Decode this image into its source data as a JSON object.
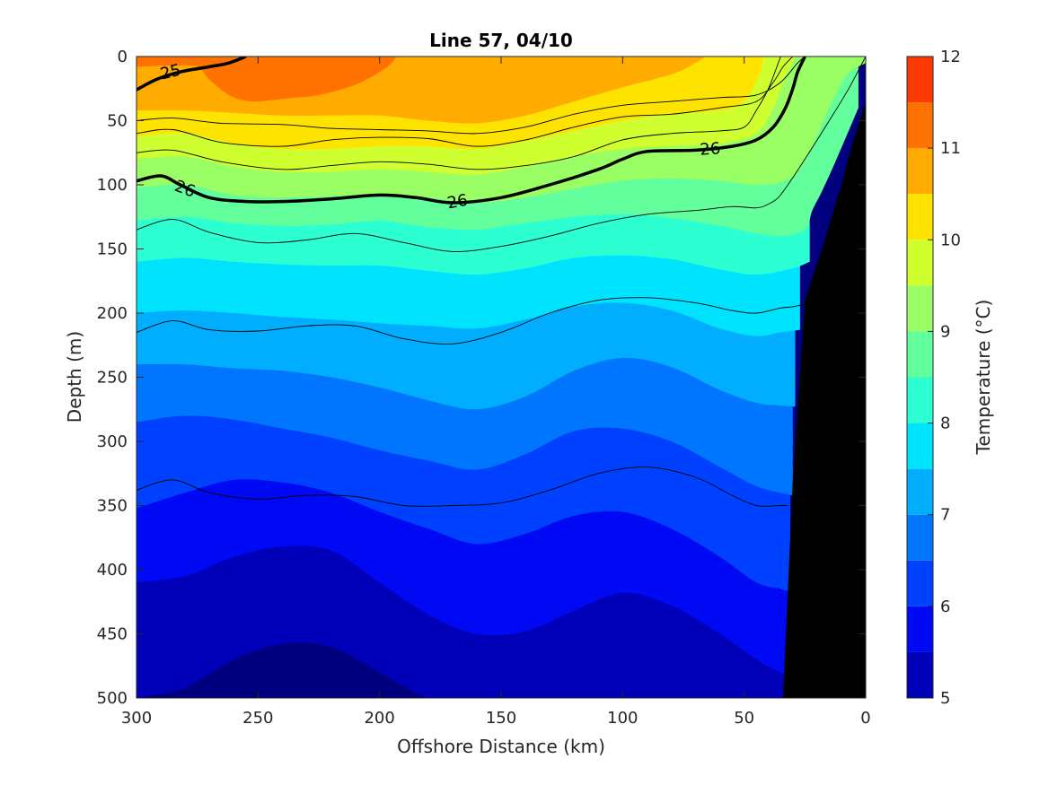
{
  "chart_data": {
    "type": "heatmap",
    "title": "Line 57, 04/10",
    "xlabel": "Offshore Distance (km)",
    "ylabel": "Depth (m)",
    "colorbar_label": "Temperature (°C)",
    "xlim": [
      300,
      0
    ],
    "ylim": [
      0,
      500
    ],
    "x_reversed": true,
    "y_reversed": true,
    "x_ticks": [
      300,
      250,
      200,
      150,
      100,
      50,
      0
    ],
    "y_ticks": [
      0,
      50,
      100,
      150,
      200,
      250,
      300,
      350,
      400,
      450,
      500
    ],
    "colorbar_ticks": [
      5,
      6,
      7,
      8,
      9,
      10,
      11,
      12
    ],
    "colorbar_range": [
      5,
      12
    ],
    "temperature_levels": [
      5,
      5.5,
      6,
      6.5,
      7,
      7.5,
      8,
      8.5,
      9,
      9.5,
      10,
      10.5,
      11,
      11.5,
      12
    ],
    "colormap": [
      "#00007f",
      "#0000b9",
      "#0009f4",
      "#0040ff",
      "#0076ff",
      "#00adff",
      "#00e3ff",
      "#2cffd2",
      "#62ff9c",
      "#99ff65",
      "#cfff2f",
      "#ffe300",
      "#ffab00",
      "#ff7200",
      "#ff3a00",
      "#b90000"
    ],
    "isotherms": [
      {
        "t": 5.5,
        "x": [
          300,
          280,
          260,
          240,
          220,
          200,
          180,
          160,
          140,
          120,
          100,
          80,
          60,
          45,
          35,
          33
        ],
        "depth": [
          500,
          492,
          470,
          458,
          460,
          480,
          500,
          500,
          500,
          500,
          500,
          500,
          500,
          500,
          500,
          500
        ]
      },
      {
        "t": 6.0,
        "x": [
          300,
          280,
          260,
          240,
          220,
          200,
          180,
          160,
          140,
          120,
          100,
          80,
          60,
          45,
          35,
          32
        ],
        "depth": [
          410,
          405,
          390,
          382,
          385,
          410,
          435,
          450,
          448,
          432,
          418,
          428,
          450,
          470,
          480,
          482
        ]
      },
      {
        "t": 6.5,
        "x": [
          300,
          280,
          260,
          240,
          220,
          200,
          180,
          160,
          140,
          120,
          100,
          80,
          60,
          45,
          35,
          31
        ],
        "depth": [
          352,
          340,
          330,
          332,
          340,
          355,
          368,
          380,
          372,
          358,
          355,
          368,
          390,
          410,
          415,
          418
        ]
      },
      {
        "t": 7.0,
        "x": [
          300,
          280,
          260,
          240,
          220,
          200,
          180,
          160,
          140,
          120,
          100,
          80,
          60,
          45,
          35,
          30
        ],
        "depth": [
          285,
          280,
          283,
          290,
          297,
          307,
          315,
          322,
          310,
          292,
          290,
          300,
          320,
          335,
          340,
          342
        ]
      },
      {
        "t": 7.5,
        "x": [
          300,
          280,
          260,
          240,
          220,
          200,
          180,
          160,
          140,
          120,
          100,
          80,
          60,
          45,
          35,
          29
        ],
        "depth": [
          240,
          240,
          243,
          245,
          250,
          258,
          268,
          275,
          265,
          245,
          235,
          242,
          260,
          270,
          272,
          273
        ]
      },
      {
        "t": 8.0,
        "x": [
          300,
          280,
          260,
          240,
          220,
          200,
          180,
          160,
          140,
          120,
          100,
          80,
          60,
          45,
          35,
          27
        ],
        "depth": [
          200,
          198,
          200,
          203,
          205,
          208,
          210,
          212,
          205,
          195,
          192,
          198,
          212,
          218,
          215,
          213
        ]
      },
      {
        "t": 8.5,
        "x": [
          300,
          280,
          260,
          240,
          220,
          200,
          180,
          160,
          140,
          120,
          100,
          80,
          60,
          45,
          30,
          23
        ],
        "depth": [
          160,
          157,
          160,
          162,
          163,
          163,
          167,
          170,
          165,
          157,
          155,
          158,
          166,
          170,
          165,
          160
        ]
      },
      {
        "t": 9.0,
        "x": [
          300,
          280,
          260,
          240,
          220,
          200,
          180,
          160,
          140,
          120,
          100,
          80,
          60,
          45,
          35,
          25,
          22,
          18,
          12,
          3
        ],
        "depth": [
          128,
          125,
          130,
          132,
          131,
          128,
          133,
          135,
          130,
          125,
          123,
          126,
          132,
          138,
          140,
          135,
          120,
          105,
          80,
          40
        ]
      },
      {
        "t": 9.5,
        "x": [
          300,
          280,
          260,
          240,
          220,
          200,
          180,
          160,
          140,
          120,
          100,
          80,
          60,
          45,
          35,
          28,
          22,
          15,
          8,
          0
        ],
        "depth": [
          102,
          100,
          108,
          110,
          109,
          107,
          110,
          114,
          110,
          103,
          97,
          95,
          97,
          100,
          98,
          90,
          70,
          40,
          15,
          5
        ]
      },
      {
        "t": 10.0,
        "x": [
          300,
          280,
          260,
          240,
          220,
          200,
          180,
          160,
          140,
          120,
          100,
          80,
          60,
          45,
          38,
          34,
          31,
          29
        ],
        "depth": [
          80,
          78,
          86,
          90,
          90,
          88,
          90,
          92,
          86,
          78,
          72,
          70,
          68,
          60,
          40,
          20,
          8,
          0
        ]
      },
      {
        "t": 10.5,
        "x": [
          300,
          280,
          260,
          240,
          220,
          200,
          180,
          160,
          140,
          120,
          100,
          80,
          60,
          50,
          44,
          42
        ],
        "depth": [
          62,
          60,
          68,
          72,
          72,
          70,
          70,
          72,
          66,
          58,
          50,
          45,
          42,
          35,
          15,
          0
        ]
      },
      {
        "t": 11.0,
        "x": [
          300,
          280,
          260,
          240,
          220,
          200,
          180,
          160,
          140,
          120,
          100,
          80,
          70,
          66
        ],
        "depth": [
          42,
          42,
          44,
          46,
          46,
          46,
          50,
          52,
          46,
          35,
          24,
          14,
          5,
          0
        ]
      },
      {
        "t": 11.5,
        "x": [
          300,
          285,
          275,
          270,
          262,
          256,
          250,
          240,
          225,
          210,
          200,
          195,
          193
        ],
        "depth": [
          8,
          7,
          8,
          18,
          30,
          34,
          35,
          33,
          30,
          22,
          12,
          5,
          0
        ]
      },
      {
        "t": 12.0,
        "x": [],
        "depth": []
      }
    ],
    "density_contours": [
      {
        "x": [
          300,
          285,
          265,
          240,
          220,
          200,
          180,
          160,
          140,
          120,
          100,
          80,
          60,
          45,
          35,
          28,
          25
        ],
        "depth": [
          50,
          48,
          52,
          53,
          56,
          57,
          58,
          60,
          55,
          45,
          38,
          35,
          32,
          30,
          20,
          5,
          0
        ]
      },
      {
        "x": [
          300,
          285,
          265,
          240,
          220,
          200,
          180,
          160,
          140,
          120,
          100,
          80,
          60,
          45,
          38,
          34,
          30
        ],
        "depth": [
          60,
          57,
          67,
          70,
          65,
          63,
          64,
          70,
          65,
          55,
          47,
          45,
          40,
          35,
          20,
          8,
          0
        ]
      },
      {
        "x": [
          300,
          285,
          265,
          240,
          220,
          200,
          180,
          160,
          140,
          120,
          100,
          80,
          60,
          50,
          45,
          40,
          35
        ],
        "depth": [
          75,
          73,
          82,
          88,
          85,
          82,
          84,
          88,
          85,
          78,
          65,
          60,
          58,
          55,
          42,
          25,
          0
        ]
      },
      {
        "x": [
          300,
          285,
          270,
          250,
          230,
          210,
          190,
          170,
          150,
          130,
          110,
          90,
          70,
          55,
          45,
          40,
          36,
          32,
          25,
          15,
          7,
          0
        ],
        "depth": [
          135,
          127,
          137,
          145,
          143,
          138,
          145,
          152,
          148,
          140,
          130,
          123,
          120,
          117,
          118,
          115,
          110,
          100,
          80,
          50,
          25,
          0
        ]
      },
      {
        "x": [
          300,
          285,
          270,
          250,
          230,
          210,
          190,
          170,
          150,
          130,
          110,
          90,
          70,
          55,
          45,
          35,
          30,
          25
        ],
        "depth": [
          215,
          206,
          213,
          214,
          210,
          210,
          220,
          224,
          215,
          200,
          190,
          188,
          192,
          198,
          200,
          196,
          195,
          193
        ]
      },
      {
        "x": [
          300,
          285,
          270,
          250,
          230,
          210,
          190,
          170,
          150,
          130,
          110,
          90,
          70,
          55,
          45,
          35,
          32
        ],
        "depth": [
          338,
          330,
          340,
          345,
          342,
          343,
          350,
          350,
          348,
          338,
          325,
          320,
          328,
          342,
          350,
          350,
          350
        ]
      }
    ],
    "contour_labels": [
      {
        "text": "25",
        "x": 286,
        "depth": 12,
        "angle": -14
      },
      {
        "text": "26",
        "x": 280,
        "depth": 103,
        "angle": 20
      },
      {
        "text": "26",
        "x": 168,
        "depth": 113,
        "angle": -10
      },
      {
        "text": "26",
        "x": 64,
        "depth": 72,
        "angle": -4
      }
    ],
    "bottom_mask": {
      "x": [
        0,
        0,
        5,
        10,
        18,
        25,
        30,
        34
      ],
      "depth": [
        500,
        35,
        65,
        100,
        150,
        190,
        330,
        500
      ]
    }
  }
}
